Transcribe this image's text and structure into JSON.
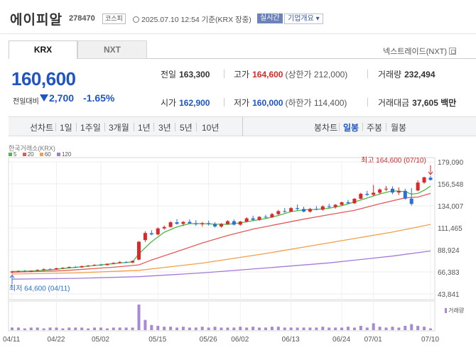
{
  "header": {
    "name": "에이피알",
    "code": "278470",
    "market": "코스피",
    "timestamp": "2025.07.10 12:54  기준(KRX 장중)",
    "realtime_label": "실시간",
    "company_label": "기업개요 ▾"
  },
  "tabs": [
    {
      "label": "KRX",
      "active": true
    },
    {
      "label": "NXT",
      "active": false
    }
  ],
  "nextrade_label": "넥스트레이드(NXT)",
  "summary": {
    "price": "160,600",
    "change_label": "전일대비",
    "change_value": "2,700",
    "change_rate": "-1.65%",
    "prev_label": "전일",
    "prev_value": "163,300",
    "high_label": "고가",
    "high_value": "164,600",
    "high_sub": "(상한가 212,000)",
    "volume_label": "거래량",
    "volume_value": "232,494",
    "open_label": "시가",
    "open_value": "162,900",
    "low_label": "저가",
    "low_value": "160,000",
    "low_sub": "(하한가 114,400)",
    "amount_label": "거래대금",
    "amount_value": "37,605 백만"
  },
  "period": {
    "line_label": "선차트",
    "line_items": [
      "1일",
      "1주일",
      "3개월",
      "1년",
      "3년",
      "5년",
      "10년"
    ],
    "candle_label": "봉차트",
    "candle_items": [
      "일봉",
      "주봉",
      "월봉"
    ],
    "candle_active": "일봉"
  },
  "colors": {
    "up": "#d82a2a",
    "down": "#2b6fd6",
    "ma5": "#4cb847",
    "ma20": "#e25b5b",
    "ma60": "#f0a04a",
    "ma120": "#a47ad8",
    "volume": "#a78ad4"
  },
  "chart_data": {
    "type": "candlestick",
    "source_label": "한국거래소(KRX)",
    "legend": [
      {
        "label": "5",
        "key": "ma5"
      },
      {
        "label": "20",
        "key": "ma20"
      },
      {
        "label": "60",
        "key": "ma60"
      },
      {
        "label": "120",
        "key": "ma120"
      }
    ],
    "y_ticks": [
      "179,090",
      "156,548",
      "134,007",
      "111,465",
      "88,924",
      "66,383",
      "43,841"
    ],
    "y_tick_values": [
      179090,
      156548,
      134007,
      111465,
      88924,
      66383,
      43841
    ],
    "x_ticks": [
      "04/11",
      "04/22",
      "05/02",
      "05/15",
      "05/26",
      "06/02",
      "06/13",
      "06/24",
      "07/01",
      "07/10"
    ],
    "annotation_high": "최고 164,600 (07/10)",
    "annotation_low": "최저 64,600 (04/11)",
    "volume_label": "거래량",
    "candles": [
      [
        65800,
        67400,
        64600,
        66800
      ],
      [
        66800,
        68000,
        65900,
        67100
      ],
      [
        67100,
        68400,
        66300,
        66500
      ],
      [
        66500,
        67900,
        66000,
        67600
      ],
      [
        67600,
        69000,
        67000,
        68400
      ],
      [
        68400,
        70000,
        67800,
        69100
      ],
      [
        69100,
        70200,
        68200,
        68800
      ],
      [
        68800,
        70500,
        68500,
        70200
      ],
      [
        70200,
        71200,
        69500,
        70600
      ],
      [
        70600,
        72000,
        70000,
        71400
      ],
      [
        71400,
        72400,
        70800,
        71000
      ],
      [
        71000,
        72800,
        70600,
        72300
      ],
      [
        72300,
        73400,
        71600,
        72900
      ],
      [
        72900,
        74200,
        72400,
        73600
      ],
      [
        73600,
        74800,
        72900,
        73300
      ],
      [
        73300,
        75000,
        73000,
        74700
      ],
      [
        74700,
        76200,
        74000,
        75600
      ],
      [
        75600,
        77600,
        75000,
        76400
      ],
      [
        76400,
        77400,
        75600,
        75900
      ],
      [
        75900,
        78000,
        75500,
        77600
      ],
      [
        79000,
        98000,
        78200,
        97300
      ],
      [
        99000,
        108000,
        97000,
        106200
      ],
      [
        106000,
        109000,
        104000,
        104800
      ],
      [
        104800,
        112000,
        104000,
        110900
      ],
      [
        110900,
        113800,
        109500,
        112400
      ],
      [
        112400,
        118400,
        111800,
        117200
      ],
      [
        117200,
        120500,
        114800,
        115600
      ],
      [
        115600,
        118400,
        113400,
        117600
      ],
      [
        117600,
        120200,
        115600,
        116200
      ],
      [
        116200,
        119400,
        113600,
        115200
      ],
      [
        115200,
        117600,
        112800,
        116300
      ],
      [
        116300,
        118900,
        113800,
        115400
      ],
      [
        115400,
        117400,
        111800,
        112900
      ],
      [
        112900,
        116400,
        111700,
        115400
      ],
      [
        115400,
        119400,
        114600,
        118300
      ],
      [
        118300,
        120200,
        113900,
        114800
      ],
      [
        114800,
        118700,
        113600,
        117900
      ],
      [
        117900,
        122400,
        117000,
        121200
      ],
      [
        121200,
        124000,
        118700,
        119700
      ],
      [
        119700,
        123400,
        118600,
        122800
      ],
      [
        122800,
        124900,
        121300,
        122300
      ],
      [
        122300,
        126800,
        121700,
        125600
      ],
      [
        125600,
        129900,
        124500,
        128600
      ],
      [
        128600,
        131800,
        127000,
        128200
      ],
      [
        128200,
        132800,
        127600,
        131700
      ],
      [
        131700,
        135400,
        129200,
        130800
      ],
      [
        130800,
        133200,
        127400,
        128200
      ],
      [
        128200,
        132000,
        127000,
        130900
      ],
      [
        130900,
        133800,
        129500,
        130100
      ],
      [
        130100,
        134600,
        129000,
        133500
      ],
      [
        133500,
        136200,
        131800,
        132800
      ],
      [
        132800,
        136000,
        131200,
        135100
      ],
      [
        135100,
        138400,
        134000,
        137700
      ],
      [
        137700,
        140200,
        135700,
        136700
      ],
      [
        136700,
        142000,
        135900,
        141300
      ],
      [
        141300,
        147400,
        140800,
        146400
      ],
      [
        146400,
        149400,
        144200,
        145300
      ],
      [
        145300,
        155500,
        144000,
        147500
      ],
      [
        147500,
        152000,
        146000,
        150800
      ],
      [
        150800,
        154300,
        149200,
        151600
      ],
      [
        151600,
        154000,
        146000,
        147700
      ],
      [
        147700,
        153000,
        145200,
        149400
      ],
      [
        149400,
        151600,
        140200,
        141400
      ],
      [
        141400,
        152200,
        134400,
        136000
      ],
      [
        149800,
        160200,
        149000,
        157900
      ],
      [
        157900,
        163800,
        156700,
        163300
      ],
      [
        162900,
        164600,
        160000,
        160600
      ]
    ],
    "ma5_points": [
      [
        0,
        66800
      ],
      [
        4,
        67500
      ],
      [
        8,
        69800
      ],
      [
        12,
        72300
      ],
      [
        16,
        74900
      ],
      [
        19,
        76600
      ],
      [
        20,
        85000
      ],
      [
        22,
        97300
      ],
      [
        24,
        107000
      ],
      [
        26,
        112500
      ],
      [
        28,
        115800
      ],
      [
        30,
        115800
      ],
      [
        32,
        115300
      ],
      [
        34,
        115100
      ],
      [
        36,
        116600
      ],
      [
        38,
        118800
      ],
      [
        40,
        121000
      ],
      [
        42,
        124200
      ],
      [
        44,
        128100
      ],
      [
        46,
        130000
      ],
      [
        48,
        130400
      ],
      [
        50,
        131500
      ],
      [
        52,
        134200
      ],
      [
        54,
        138000
      ],
      [
        56,
        142100
      ],
      [
        58,
        146200
      ],
      [
        60,
        149400
      ],
      [
        62,
        148600
      ],
      [
        63,
        146000
      ],
      [
        64,
        146800
      ],
      [
        65,
        150000
      ],
      [
        66,
        154300
      ]
    ],
    "ma20_points": [
      [
        0,
        66000
      ],
      [
        8,
        67600
      ],
      [
        16,
        71200
      ],
      [
        20,
        73600
      ],
      [
        22,
        78600
      ],
      [
        26,
        87200
      ],
      [
        30,
        96000
      ],
      [
        34,
        103600
      ],
      [
        38,
        110200
      ],
      [
        42,
        115300
      ],
      [
        46,
        120400
      ],
      [
        50,
        125000
      ],
      [
        54,
        129400
      ],
      [
        58,
        136200
      ],
      [
        62,
        142200
      ],
      [
        64,
        143000
      ],
      [
        66,
        146800
      ]
    ],
    "ma60_points": [
      [
        0,
        64200
      ],
      [
        10,
        65400
      ],
      [
        20,
        68000
      ],
      [
        30,
        75400
      ],
      [
        40,
        85200
      ],
      [
        50,
        96200
      ],
      [
        60,
        107200
      ],
      [
        66,
        115000
      ]
    ],
    "ma120_points": [
      [
        0,
        59000
      ],
      [
        10,
        59800
      ],
      [
        20,
        61500
      ],
      [
        30,
        65400
      ],
      [
        40,
        70400
      ],
      [
        50,
        75600
      ],
      [
        60,
        82600
      ],
      [
        66,
        87800
      ]
    ],
    "volume_bars": [
      3,
      3,
      2,
      3,
      3,
      2,
      3,
      3,
      2,
      3,
      3,
      3,
      2,
      3,
      3,
      2,
      3,
      3,
      3,
      3,
      30,
      12,
      6,
      5,
      4,
      4,
      3,
      4,
      3,
      3,
      4,
      3,
      4,
      3,
      3,
      3,
      4,
      3,
      4,
      3,
      3,
      4,
      4,
      3,
      3,
      3,
      3,
      3,
      3,
      4,
      3,
      3,
      3,
      4,
      3,
      5,
      3,
      8,
      4,
      3,
      4,
      3,
      5,
      7,
      5,
      4,
      2
    ]
  }
}
